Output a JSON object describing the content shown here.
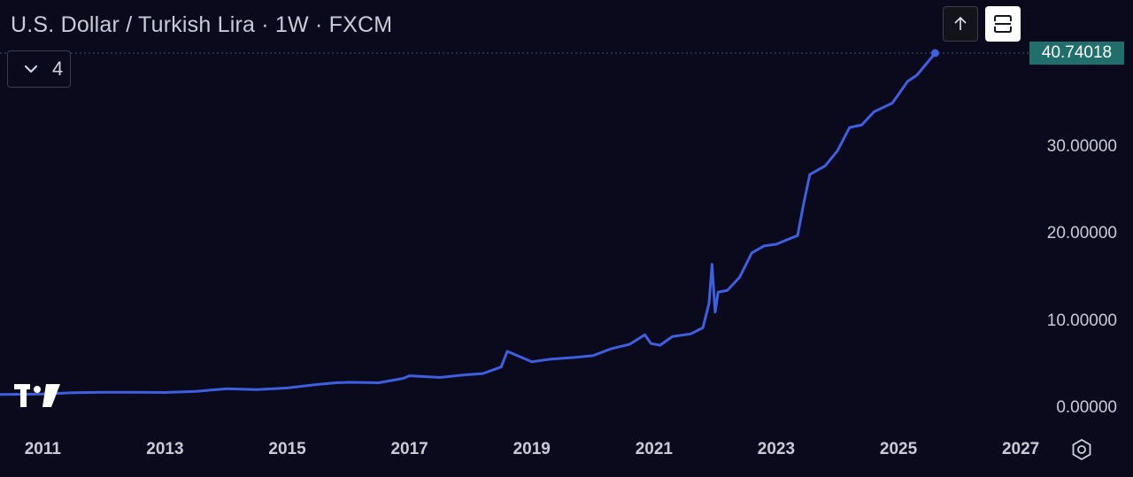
{
  "header": {
    "title": "U.S. Dollar / Turkish Lira · 1W · FXCM"
  },
  "legend": {
    "count": "4"
  },
  "toolbar": {
    "up_icon": "arrow-up-icon",
    "expand_icon": "expand-icon"
  },
  "price_tag": {
    "value": "40.74018"
  },
  "icons": {
    "logo": "tradingview-logo",
    "settings": "settings-icon",
    "chevron": "chevron-down-icon"
  },
  "colors": {
    "background": "#0a0a1c",
    "line": "#3d5fe0",
    "price_tag": "#216f6c",
    "text": "#c9ccd6"
  },
  "chart_data": {
    "type": "line",
    "xlim": [
      2010.3,
      2028.2
    ],
    "ylim": [
      0,
      40.74018
    ],
    "yticks": [
      {
        "value": 0,
        "label": "0.00000"
      },
      {
        "value": 10,
        "label": "10.00000"
      },
      {
        "value": 20,
        "label": "20.00000"
      },
      {
        "value": 30,
        "label": "30.00000"
      }
    ],
    "xticks": [
      {
        "value": 2011,
        "label": "2011"
      },
      {
        "value": 2013,
        "label": "2013"
      },
      {
        "value": 2015,
        "label": "2015"
      },
      {
        "value": 2017,
        "label": "2017"
      },
      {
        "value": 2019,
        "label": "2019"
      },
      {
        "value": 2021,
        "label": "2021"
      },
      {
        "value": 2023,
        "label": "2023"
      },
      {
        "value": 2025,
        "label": "2025"
      },
      {
        "value": 2027,
        "label": "2027"
      }
    ],
    "series": [
      {
        "points": [
          [
            2010.3,
            1.55
          ],
          [
            2011.0,
            1.6
          ],
          [
            2011.5,
            1.75
          ],
          [
            2012.0,
            1.8
          ],
          [
            2012.5,
            1.8
          ],
          [
            2013.0,
            1.78
          ],
          [
            2013.5,
            1.9
          ],
          [
            2014.0,
            2.2
          ],
          [
            2014.5,
            2.1
          ],
          [
            2015.0,
            2.3
          ],
          [
            2015.5,
            2.7
          ],
          [
            2015.8,
            2.9
          ],
          [
            2016.0,
            2.95
          ],
          [
            2016.5,
            2.9
          ],
          [
            2016.9,
            3.4
          ],
          [
            2017.0,
            3.7
          ],
          [
            2017.5,
            3.5
          ],
          [
            2017.9,
            3.8
          ],
          [
            2018.2,
            3.95
          ],
          [
            2018.5,
            4.7
          ],
          [
            2018.6,
            6.5
          ],
          [
            2018.8,
            5.9
          ],
          [
            2019.0,
            5.3
          ],
          [
            2019.3,
            5.6
          ],
          [
            2019.5,
            5.7
          ],
          [
            2019.7,
            5.8
          ],
          [
            2020.0,
            6.0
          ],
          [
            2020.3,
            6.8
          ],
          [
            2020.6,
            7.3
          ],
          [
            2020.85,
            8.4
          ],
          [
            2020.95,
            7.4
          ],
          [
            2021.1,
            7.2
          ],
          [
            2021.3,
            8.2
          ],
          [
            2021.6,
            8.5
          ],
          [
            2021.8,
            9.2
          ],
          [
            2021.9,
            12.0
          ],
          [
            2021.95,
            16.5
          ],
          [
            2022.0,
            11.0
          ],
          [
            2022.05,
            13.3
          ],
          [
            2022.2,
            13.5
          ],
          [
            2022.4,
            15.0
          ],
          [
            2022.6,
            17.8
          ],
          [
            2022.8,
            18.6
          ],
          [
            2023.0,
            18.8
          ],
          [
            2023.35,
            19.8
          ],
          [
            2023.45,
            23.5
          ],
          [
            2023.55,
            26.8
          ],
          [
            2023.8,
            27.8
          ],
          [
            2024.0,
            29.5
          ],
          [
            2024.2,
            32.2
          ],
          [
            2024.4,
            32.5
          ],
          [
            2024.6,
            34.0
          ],
          [
            2024.9,
            35.0
          ],
          [
            2025.15,
            37.5
          ],
          [
            2025.3,
            38.2
          ],
          [
            2025.6,
            40.74018
          ]
        ]
      }
    ]
  }
}
